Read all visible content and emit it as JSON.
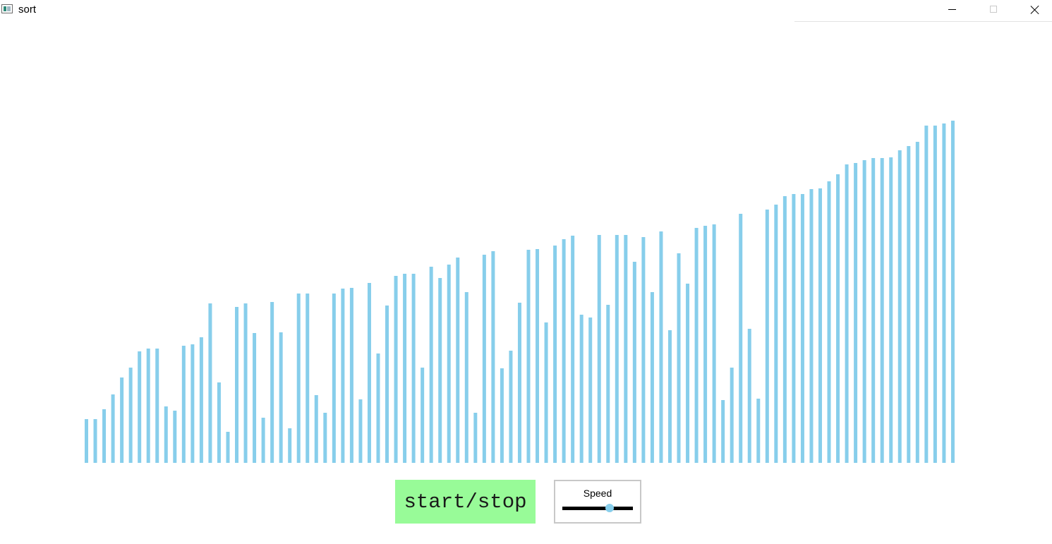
{
  "window": {
    "title": "sort",
    "icon": "app-window-icon",
    "controls": [
      "minimize-icon",
      "maximize-icon",
      "close-icon"
    ]
  },
  "colors": {
    "bar": "#87ceeb",
    "start_button_bg": "#98fb98",
    "slider_track": "#000000",
    "slider_thumb": "#87ceeb"
  },
  "controls": {
    "start_stop_label": "start/stop",
    "speed_label": "Speed",
    "speed_level": 0.67
  },
  "chart_data": {
    "type": "bar",
    "baseline_value": 0,
    "values": [
      62,
      62,
      76,
      97,
      121,
      135,
      158,
      162,
      162,
      80,
      74,
      166,
      168,
      178,
      226,
      114,
      44,
      221,
      226,
      184,
      64,
      228,
      185,
      49,
      240,
      240,
      96,
      71,
      240,
      247,
      248,
      90,
      255,
      155,
      223,
      265,
      268,
      268,
      135,
      278,
      262,
      281,
      291,
      242,
      71,
      295,
      300,
      134,
      159,
      227,
      302,
      303,
      199,
      308,
      317,
      322,
      210,
      206,
      323,
      224,
      323,
      323,
      285,
      320,
      242,
      328,
      188,
      297,
      254,
      333,
      336,
      338,
      89,
      135,
      353,
      190,
      91,
      359,
      366,
      378,
      381,
      381,
      388,
      389,
      399,
      409,
      423,
      425,
      429,
      432,
      432,
      433,
      443,
      449,
      455,
      478,
      478,
      481,
      485
    ]
  }
}
